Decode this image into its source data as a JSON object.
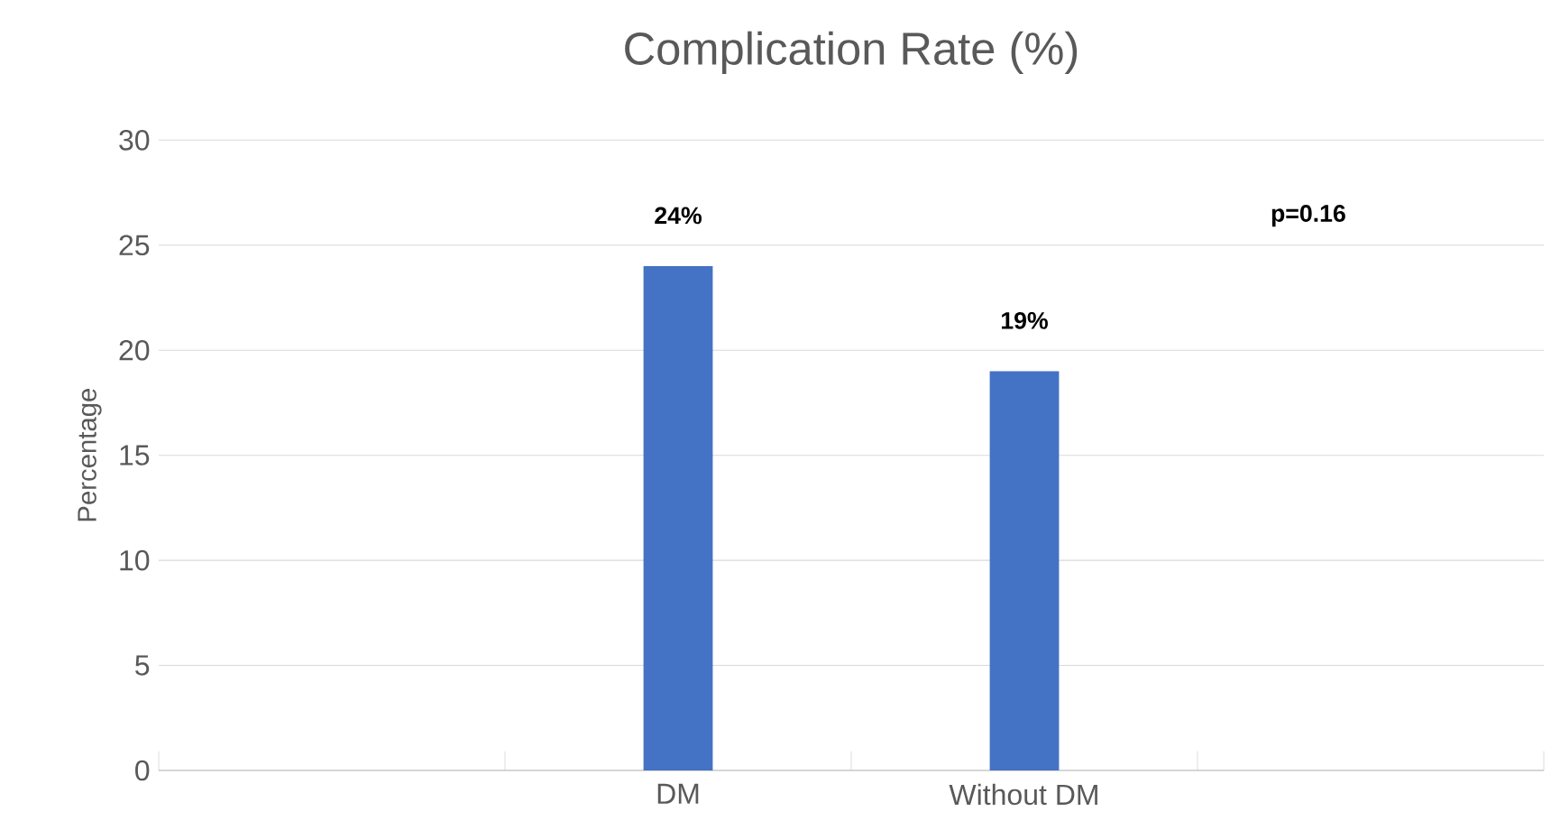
{
  "chart_data": {
    "type": "bar",
    "title": "Complication Rate (%)",
    "ylabel": "Percentage",
    "categories": [
      null,
      "DM",
      "Without DM",
      null
    ],
    "values": [
      null,
      24,
      19,
      null
    ],
    "value_labels": [
      null,
      "24%",
      "19%",
      null
    ],
    "color": "#4472c4",
    "ylim": [
      0,
      30
    ],
    "yticks": [
      0,
      5,
      10,
      15,
      20,
      25,
      30
    ],
    "grid": "y",
    "annotations": [
      "p=0.16"
    ]
  }
}
